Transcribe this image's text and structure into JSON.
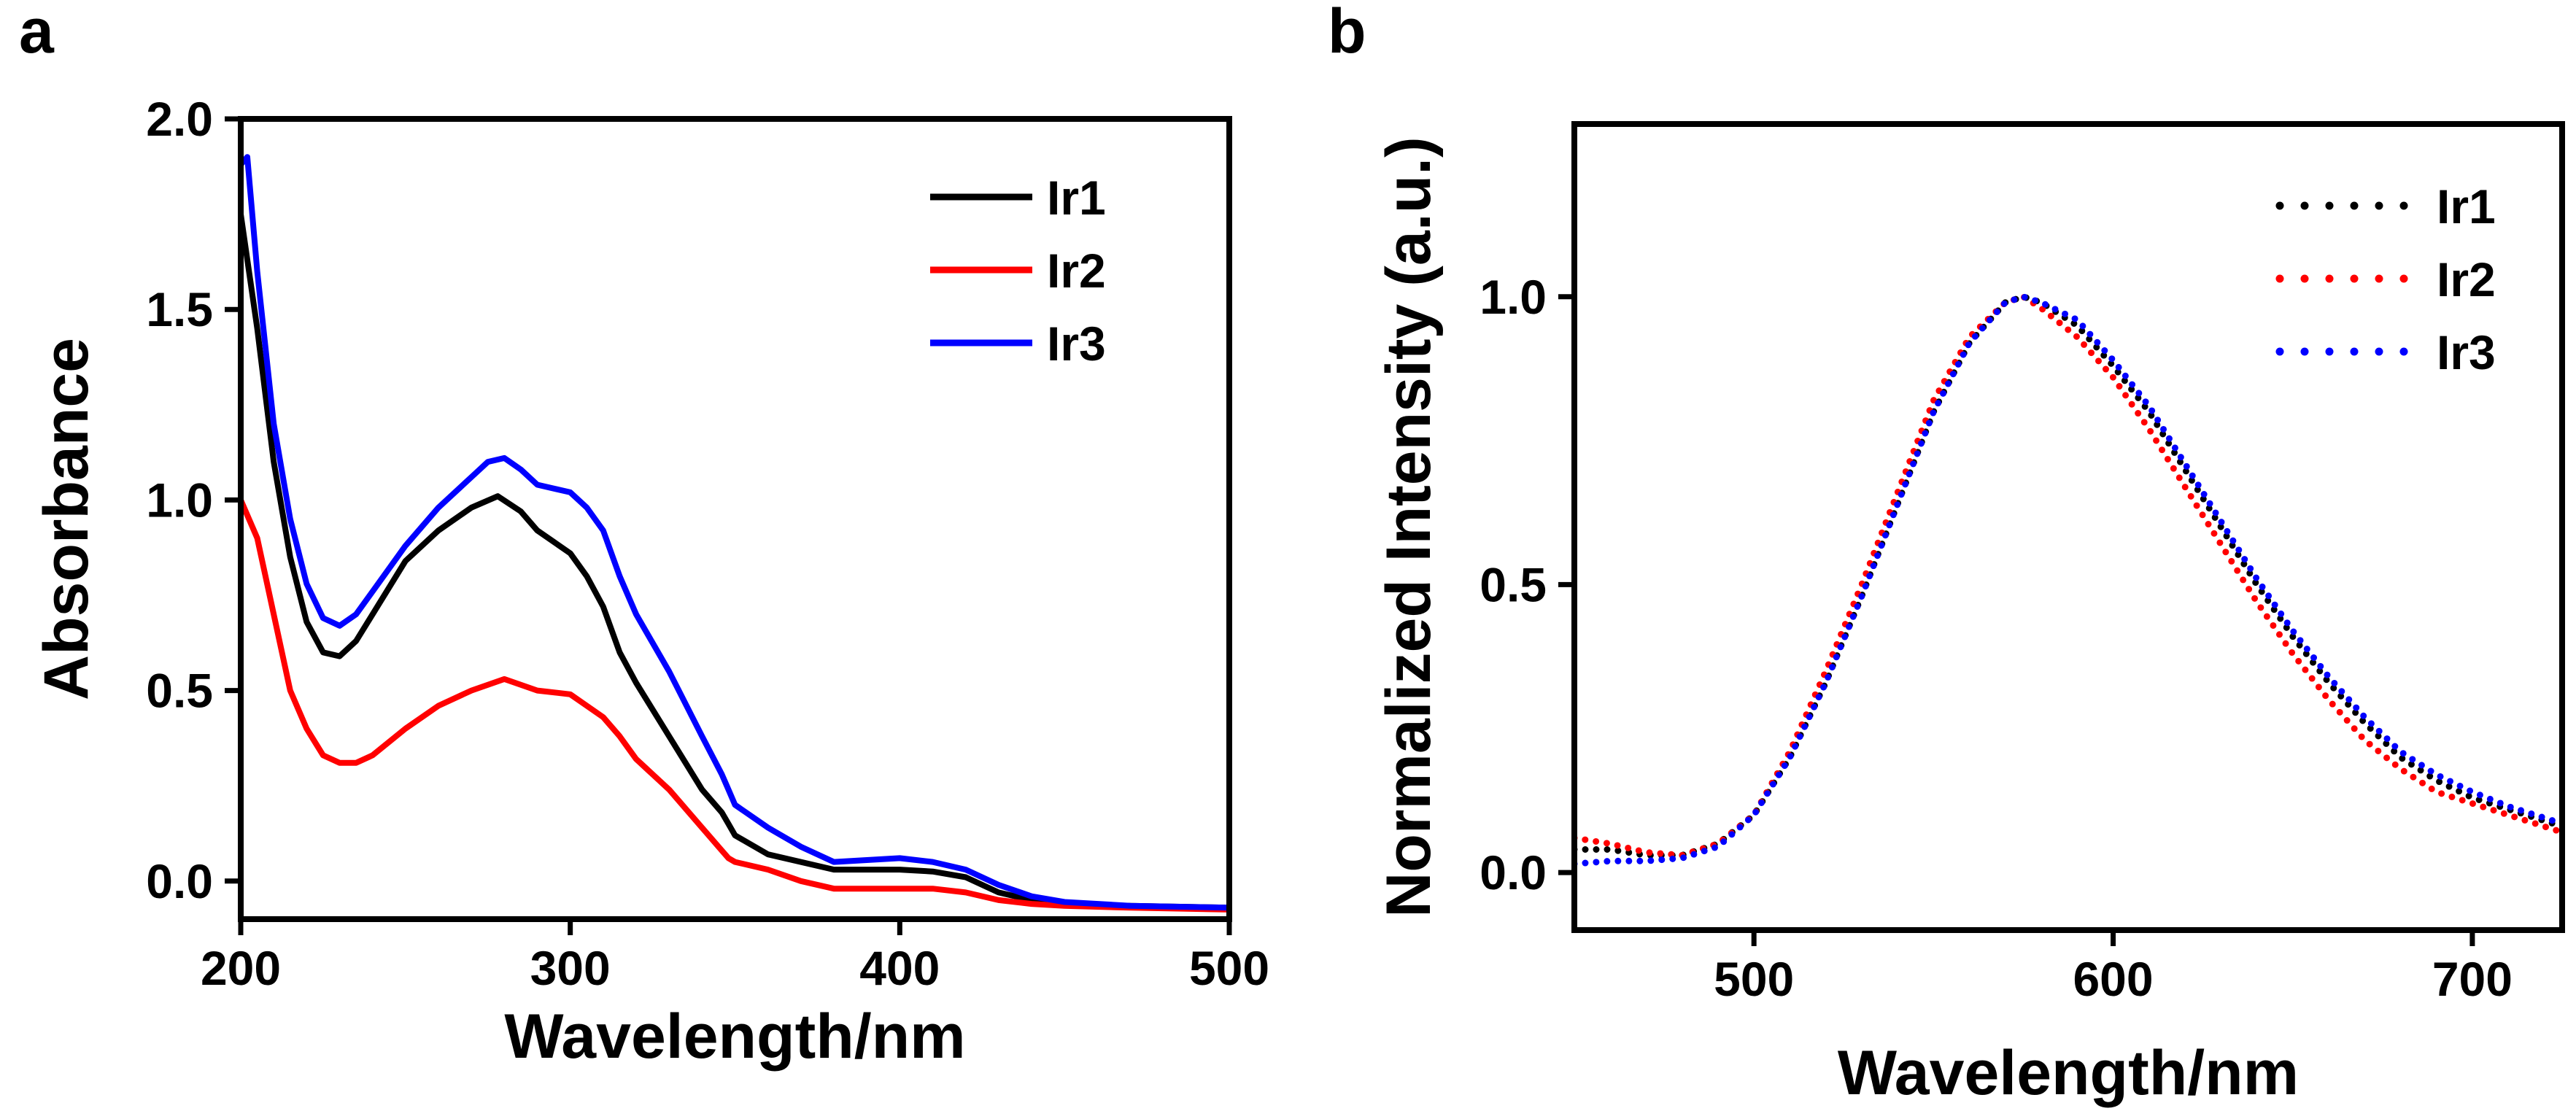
{
  "panels": {
    "a": "a",
    "b": "b"
  },
  "chart_data": [
    {
      "id": "a",
      "type": "line",
      "title": "",
      "xlabel": "Wavelength/nm",
      "ylabel": "Absorbance",
      "xlim": [
        200,
        500
      ],
      "ylim": [
        -0.1,
        2.0
      ],
      "xticks": [
        200,
        300,
        400,
        500
      ],
      "xtick_labels": [
        "200",
        "300",
        "400",
        "500"
      ],
      "yticks": [
        0.0,
        0.5,
        1.0,
        1.5,
        2.0
      ],
      "ytick_labels": [
        "0.0",
        "0.5",
        "1.0",
        "1.5",
        "2.0"
      ],
      "legend_position": "top-right",
      "line_style": "solid",
      "series": [
        {
          "name": "Ir1",
          "color": "#000000",
          "x": [
            200,
            205,
            210,
            215,
            220,
            225,
            230,
            235,
            240,
            250,
            260,
            270,
            278,
            285,
            290,
            300,
            305,
            310,
            315,
            320,
            330,
            340,
            346,
            348,
            350,
            360,
            380,
            400,
            410,
            420,
            430,
            440,
            450,
            470,
            500
          ],
          "y": [
            1.75,
            1.45,
            1.1,
            0.85,
            0.68,
            0.6,
            0.59,
            0.63,
            0.7,
            0.84,
            0.92,
            0.98,
            1.01,
            0.97,
            0.92,
            0.86,
            0.8,
            0.72,
            0.6,
            0.52,
            0.38,
            0.24,
            0.18,
            0.15,
            0.12,
            0.07,
            0.03,
            0.03,
            0.025,
            0.01,
            -0.03,
            -0.05,
            -0.06,
            -0.065,
            -0.07
          ]
        },
        {
          "name": "Ir2",
          "color": "#ff0000",
          "x": [
            200,
            205,
            210,
            215,
            220,
            225,
            230,
            235,
            240,
            250,
            260,
            270,
            280,
            290,
            300,
            305,
            310,
            315,
            320,
            330,
            340,
            345,
            348,
            350,
            360,
            370,
            380,
            400,
            410,
            420,
            430,
            440,
            450,
            470,
            500
          ],
          "y": [
            1.0,
            0.9,
            0.7,
            0.5,
            0.4,
            0.33,
            0.31,
            0.31,
            0.33,
            0.4,
            0.46,
            0.5,
            0.53,
            0.5,
            0.49,
            0.46,
            0.43,
            0.38,
            0.32,
            0.24,
            0.14,
            0.09,
            0.06,
            0.05,
            0.03,
            0.0,
            -0.02,
            -0.02,
            -0.02,
            -0.03,
            -0.05,
            -0.06,
            -0.065,
            -0.07,
            -0.075
          ]
        },
        {
          "name": "Ir3",
          "color": "#0000ff",
          "x": [
            200,
            202,
            205,
            210,
            215,
            220,
            225,
            230,
            235,
            240,
            250,
            260,
            270,
            275,
            280,
            285,
            290,
            300,
            305,
            310,
            315,
            320,
            330,
            340,
            346,
            348,
            350,
            360,
            370,
            380,
            400,
            410,
            420,
            430,
            440,
            450,
            470,
            500
          ],
          "y": [
            1.88,
            1.9,
            1.6,
            1.2,
            0.95,
            0.78,
            0.69,
            0.67,
            0.7,
            0.76,
            0.88,
            0.98,
            1.06,
            1.1,
            1.11,
            1.08,
            1.04,
            1.02,
            0.98,
            0.92,
            0.8,
            0.7,
            0.55,
            0.38,
            0.28,
            0.24,
            0.2,
            0.14,
            0.09,
            0.05,
            0.06,
            0.05,
            0.03,
            -0.01,
            -0.04,
            -0.055,
            -0.065,
            -0.07
          ]
        }
      ]
    },
    {
      "id": "b",
      "type": "line",
      "title": "",
      "xlabel": "Wavelength/nm",
      "ylabel": "Normalized Intensity (a.u.)",
      "xlim": [
        450,
        725
      ],
      "ylim": [
        -0.1,
        1.3
      ],
      "xticks": [
        500,
        600,
        700
      ],
      "xtick_labels": [
        "500",
        "600",
        "700"
      ],
      "yticks": [
        0.0,
        0.5,
        1.0
      ],
      "ytick_labels": [
        "0.0",
        "0.5",
        "1.0"
      ],
      "legend_position": "top-right",
      "line_style": "dotted",
      "series": [
        {
          "name": "Ir1",
          "color": "#000000",
          "x": [
            450,
            460,
            470,
            480,
            490,
            500,
            510,
            520,
            530,
            540,
            550,
            560,
            570,
            575,
            580,
            590,
            600,
            610,
            620,
            630,
            640,
            650,
            660,
            670,
            680,
            690,
            700,
            710,
            725
          ],
          "y": [
            0.04,
            0.04,
            0.03,
            0.03,
            0.05,
            0.1,
            0.2,
            0.33,
            0.48,
            0.64,
            0.8,
            0.92,
            0.99,
            1.0,
            0.99,
            0.95,
            0.88,
            0.8,
            0.7,
            0.6,
            0.5,
            0.41,
            0.33,
            0.26,
            0.2,
            0.16,
            0.13,
            0.11,
            0.08
          ]
        },
        {
          "name": "Ir2",
          "color": "#ff0000",
          "x": [
            450,
            460,
            470,
            480,
            490,
            500,
            510,
            520,
            530,
            540,
            550,
            560,
            570,
            575,
            580,
            590,
            600,
            610,
            620,
            630,
            640,
            650,
            660,
            670,
            680,
            690,
            700,
            710,
            725
          ],
          "y": [
            0.06,
            0.05,
            0.035,
            0.03,
            0.05,
            0.1,
            0.21,
            0.35,
            0.5,
            0.66,
            0.82,
            0.93,
            0.99,
            1.0,
            0.98,
            0.93,
            0.86,
            0.77,
            0.67,
            0.57,
            0.47,
            0.38,
            0.3,
            0.23,
            0.18,
            0.14,
            0.12,
            0.1,
            0.07
          ]
        },
        {
          "name": "Ir3",
          "color": "#0000ff",
          "x": [
            450,
            460,
            470,
            480,
            490,
            500,
            510,
            520,
            530,
            540,
            550,
            560,
            570,
            575,
            580,
            590,
            600,
            610,
            620,
            630,
            640,
            650,
            660,
            670,
            680,
            690,
            700,
            710,
            725
          ],
          "y": [
            0.015,
            0.02,
            0.02,
            0.025,
            0.045,
            0.1,
            0.2,
            0.33,
            0.48,
            0.64,
            0.8,
            0.92,
            0.99,
            1.0,
            0.99,
            0.96,
            0.89,
            0.81,
            0.71,
            0.61,
            0.51,
            0.42,
            0.34,
            0.27,
            0.21,
            0.17,
            0.14,
            0.115,
            0.085
          ]
        }
      ]
    }
  ]
}
